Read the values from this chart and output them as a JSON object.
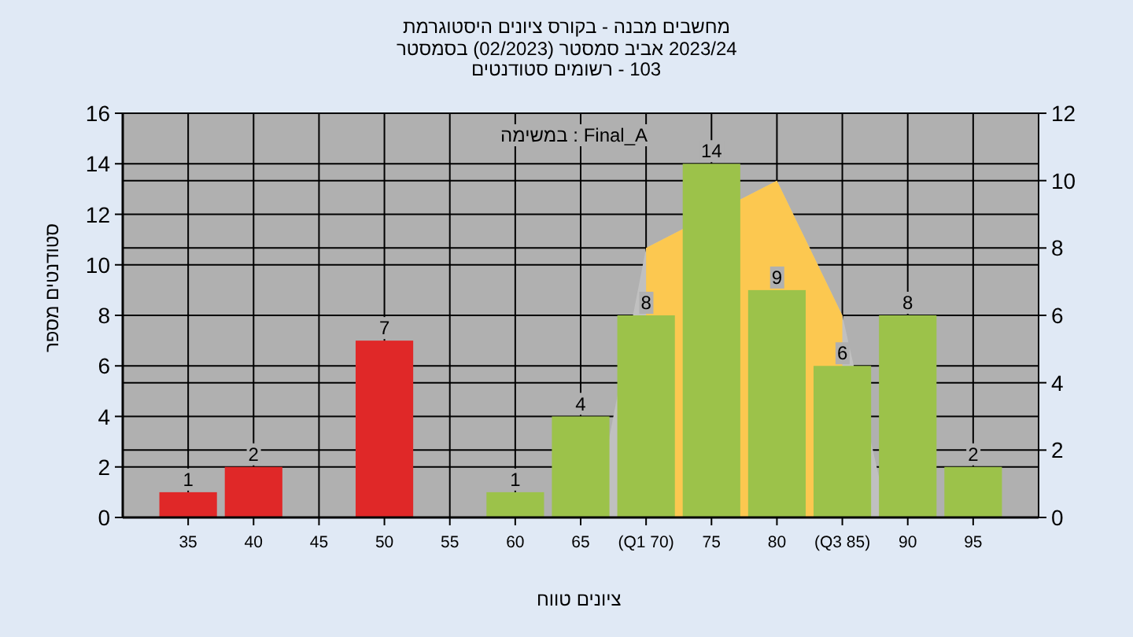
{
  "chart_data": {
    "type": "bar",
    "title": "היסטוגרמת ציונים בקורס - מבנה מחשבים",
    "subtitle": "בסמסטר (02/2023) סמסטר אביב 2023/24",
    "annotations": [
      "סטודנטים רשומים - 103",
      "במשימה : Final_A"
    ],
    "xlabel": "טווח ציונים",
    "ylabel": "מספר סטודנטים",
    "xlim": [
      30,
      100
    ],
    "xticks": [
      35,
      40,
      45,
      50,
      55,
      60,
      65,
      {
        "value": 70,
        "label": "(Q1 70)"
      },
      75,
      80,
      {
        "value": 85,
        "label": "(Q3 85)"
      },
      90,
      95
    ],
    "ylim": [
      0,
      16
    ],
    "yticks": [
      0,
      2,
      4,
      6,
      8,
      10,
      12,
      14,
      16
    ],
    "y2lim": [
      0,
      12
    ],
    "y2ticks": [
      0,
      2,
      4,
      6,
      8,
      10,
      12
    ],
    "grid": true,
    "series": [
      {
        "type": "area",
        "axis": "y2",
        "color": "#c0c0c0",
        "x": [
          66,
          70,
          80,
          85,
          88.5
        ],
        "values": [
          0,
          8,
          10,
          6,
          0
        ]
      },
      {
        "type": "area",
        "axis": "y2",
        "color": "#fcc850",
        "x": [
          70,
          70,
          80,
          85,
          85
        ],
        "values": [
          0,
          8,
          10,
          6,
          0
        ]
      },
      {
        "x": [
          35,
          40,
          45,
          50,
          55,
          60,
          65,
          70,
          75,
          80,
          85,
          90,
          95
        ],
        "values": [
          1,
          2,
          0,
          7,
          0,
          1,
          4,
          8,
          14,
          9,
          6,
          8,
          2
        ],
        "colors": [
          "#e02828",
          "#e02828",
          "#e02828",
          "#e02828",
          "#e02828",
          "#9cc24a",
          "#9cc24a",
          "#9cc24a",
          "#9cc24a",
          "#9cc24a",
          "#9cc24a",
          "#9cc24a",
          "#9cc24a"
        ],
        "value_labels": [
          "1",
          "2",
          null,
          "7",
          null,
          "1",
          "4",
          "8",
          "14",
          "9",
          "6",
          "8",
          "2"
        ]
      }
    ]
  }
}
